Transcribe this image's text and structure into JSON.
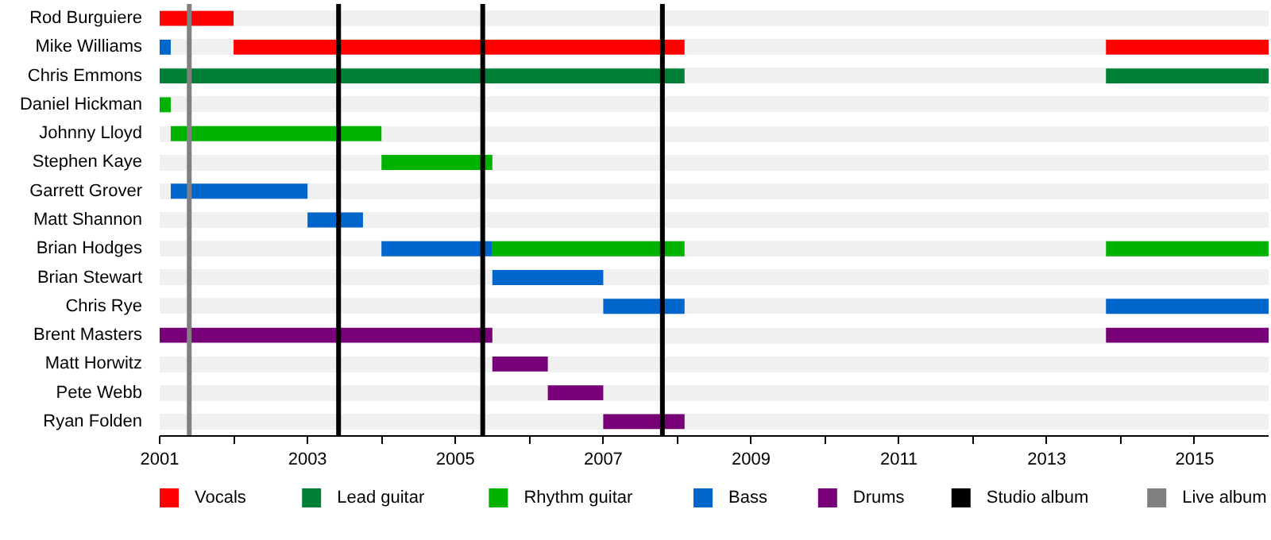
{
  "chart_data": {
    "type": "bar",
    "orientation": "horizontal",
    "categories": [
      "Rod Burguiere",
      "Mike Williams",
      "Chris Emmons",
      "Daniel Hickman",
      "Johnny Lloyd",
      "Stephen Kaye",
      "Garrett Grover",
      "Matt Shannon",
      "Brian Hodges",
      "Brian Stewart",
      "Chris Rye",
      "Brent Masters",
      "Matt Horwitz",
      "Pete Webb",
      "Ryan Folden"
    ],
    "series": [
      {
        "name": "Vocals",
        "color": "#ff0000",
        "base": [
          2001,
          2002,
          null,
          null,
          null,
          null,
          null,
          null,
          null,
          null,
          null,
          null,
          null,
          null,
          null
        ],
        "values": [
          1.0,
          6.1,
          null,
          null,
          null,
          null,
          null,
          null,
          null,
          null,
          null,
          null,
          null,
          null,
          null
        ]
      },
      {
        "name": "Lead guitar",
        "color": "#008037",
        "base": [
          null,
          null,
          2001,
          null,
          null,
          null,
          null,
          null,
          null,
          null,
          null,
          null,
          null,
          null,
          null
        ],
        "values": [
          null,
          null,
          7.1,
          null,
          null,
          null,
          null,
          null,
          null,
          null,
          null,
          null,
          null,
          null,
          null
        ]
      },
      {
        "name": "Rhythm guitar",
        "color": "#00b300",
        "base": [
          null,
          null,
          null,
          2001,
          2001.15,
          2004,
          null,
          null,
          2005.5,
          null,
          null,
          null,
          null,
          null,
          null
        ],
        "values": [
          null,
          null,
          null,
          0.15,
          2.85,
          1.5,
          null,
          null,
          2.6,
          null,
          null,
          null,
          null,
          null,
          null
        ]
      },
      {
        "name": "Bass",
        "color": "#0066cc",
        "base": [
          null,
          2001,
          null,
          null,
          null,
          null,
          2001.15,
          2003,
          2004,
          2005.5,
          2007,
          null,
          null,
          null,
          null
        ],
        "values": [
          null,
          0.15,
          null,
          null,
          null,
          null,
          1.85,
          0.75,
          1.5,
          1.5,
          1.1,
          null,
          null,
          null,
          null
        ]
      },
      {
        "name": "Drums",
        "color": "#770077",
        "base": [
          null,
          null,
          null,
          null,
          null,
          null,
          null,
          null,
          null,
          null,
          null,
          2001,
          2005.5,
          2006.25,
          2007
        ],
        "values": [
          null,
          null,
          null,
          null,
          null,
          null,
          null,
          null,
          null,
          null,
          null,
          4.5,
          0.75,
          0.75,
          1.1
        ]
      },
      {
        "colors": [
          null,
          "#ff0000",
          "#008037",
          null,
          null,
          null,
          null,
          null,
          "#00b300",
          null,
          "#0066cc",
          "#770077",
          null,
          null,
          null
        ],
        "base": [
          null,
          2013.8,
          2013.8,
          null,
          null,
          null,
          null,
          null,
          2013.8,
          null,
          2013.8,
          2013.8,
          null,
          null,
          null
        ],
        "values": [
          null,
          2.2,
          2.2,
          null,
          null,
          null,
          null,
          null,
          2.2,
          null,
          2.2,
          2.2,
          null,
          null,
          null
        ]
      }
    ],
    "ref_lines": [
      {
        "axis": "x",
        "value": 2003.42,
        "label": "Studio album",
        "color": "#000000"
      },
      {
        "axis": "x",
        "value": 2005.37,
        "color": "#000000"
      },
      {
        "axis": "x",
        "value": 2007.8,
        "color": "#000000"
      },
      {
        "axis": "x",
        "value": 2001.4,
        "label": "Live album",
        "color": "#808080"
      }
    ],
    "xlim": [
      2001,
      2016
    ],
    "xticks": [
      2001,
      {
        "value": 2002,
        "label": null
      },
      2003,
      {
        "value": 2004,
        "label": null
      },
      2005,
      {
        "value": 2006,
        "label": null
      },
      2007,
      {
        "value": 2008,
        "label": null
      },
      2009,
      {
        "value": 2010,
        "label": null
      },
      2011,
      {
        "value": 2012,
        "label": null
      },
      2013,
      {
        "value": 2014,
        "label": null
      },
      2015
    ],
    "grid": "y",
    "legend": "bottom"
  }
}
